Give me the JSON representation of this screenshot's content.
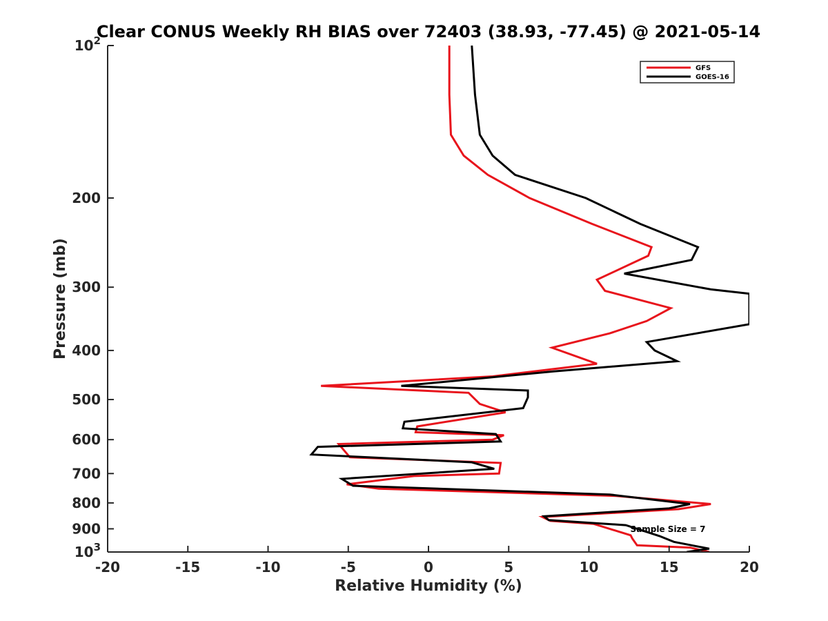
{
  "chart_data": {
    "type": "line",
    "title": "Clear CONUS Weekly RH BIAS over 72403 (38.93, -77.45) @ 2021-05-14",
    "xlabel": "Relative Humidity (%)",
    "ylabel": "Pressure (mb)",
    "xlim": [
      -20,
      20
    ],
    "ylim": [
      100,
      1000
    ],
    "y_scale": "log",
    "y_reversed": true,
    "grid": false,
    "legend_position": "top-right",
    "x_ticks": [
      "-20",
      "-15",
      "-10",
      "-5",
      "0",
      "5",
      "10",
      "15",
      "20"
    ],
    "y_ticks": [
      {
        "value": 100,
        "base": "10",
        "exp": "2"
      },
      {
        "value": 200,
        "base": "200",
        "exp": ""
      },
      {
        "value": 300,
        "base": "300",
        "exp": ""
      },
      {
        "value": 400,
        "base": "400",
        "exp": ""
      },
      {
        "value": 500,
        "base": "500",
        "exp": ""
      },
      {
        "value": 600,
        "base": "600",
        "exp": ""
      },
      {
        "value": 700,
        "base": "700",
        "exp": ""
      },
      {
        "value": 800,
        "base": "800",
        "exp": ""
      },
      {
        "value": 900,
        "base": "900",
        "exp": ""
      },
      {
        "value": 1000,
        "base": "10",
        "exp": "3"
      }
    ],
    "annotation": {
      "text": "Sample Size = 7",
      "x": 15.5,
      "y": 900
    },
    "series": [
      {
        "name": "GFS",
        "color": "#e8141c",
        "points": [
          [
            1.3,
            100
          ],
          [
            1.3,
            125
          ],
          [
            1.4,
            150
          ],
          [
            2.2,
            165
          ],
          [
            3.7,
            180
          ],
          [
            6.3,
            200
          ],
          [
            10.2,
            225
          ],
          [
            13.9,
            250
          ],
          [
            13.7,
            260
          ],
          [
            10.5,
            290
          ],
          [
            11.0,
            305
          ],
          [
            15.1,
            330
          ],
          [
            13.6,
            350
          ],
          [
            11.3,
            370
          ],
          [
            7.7,
            395
          ],
          [
            10.5,
            425
          ],
          [
            4.0,
            450
          ],
          [
            -6.7,
            470
          ],
          [
            2.5,
            485
          ],
          [
            3.2,
            510
          ],
          [
            4.8,
            530
          ],
          [
            -0.7,
            565
          ],
          [
            -0.8,
            580
          ],
          [
            4.7,
            588
          ],
          [
            4.0,
            600
          ],
          [
            -5.6,
            612
          ],
          [
            -4.9,
            650
          ],
          [
            4.5,
            667
          ],
          [
            4.4,
            700
          ],
          [
            -0.9,
            708
          ],
          [
            -5.1,
            735
          ],
          [
            -3.1,
            750
          ],
          [
            11.7,
            775
          ],
          [
            17.6,
            804
          ],
          [
            15.6,
            823
          ],
          [
            7.1,
            853
          ],
          [
            7.6,
            868
          ],
          [
            10.3,
            880
          ],
          [
            12.6,
            927
          ],
          [
            12.7,
            940
          ],
          [
            13.0,
            970
          ],
          [
            16.3,
            980
          ],
          [
            17.5,
            1000
          ]
        ]
      },
      {
        "name": "GOES-16",
        "color": "#000000",
        "points": [
          [
            2.7,
            100
          ],
          [
            2.9,
            125
          ],
          [
            3.2,
            150
          ],
          [
            4.0,
            165
          ],
          [
            5.4,
            180
          ],
          [
            9.8,
            200
          ],
          [
            13.2,
            225
          ],
          [
            16.8,
            250
          ],
          [
            16.4,
            265
          ],
          [
            12.2,
            282
          ],
          [
            17.6,
            303
          ],
          [
            20.0,
            309
          ],
          [
            20.0,
            355
          ],
          [
            13.6,
            385
          ],
          [
            14.1,
            400
          ],
          [
            15.5,
            420
          ],
          [
            7.8,
            440
          ],
          [
            -1.7,
            470
          ],
          [
            6.2,
            480
          ],
          [
            6.2,
            495
          ],
          [
            5.9,
            520
          ],
          [
            -1.5,
            553
          ],
          [
            -1.6,
            570
          ],
          [
            4.2,
            585
          ],
          [
            4.5,
            605
          ],
          [
            -6.9,
            620
          ],
          [
            -7.3,
            642
          ],
          [
            2.7,
            665
          ],
          [
            4.1,
            685
          ],
          [
            -5.4,
            717
          ],
          [
            -4.7,
            740
          ],
          [
            11.3,
            770
          ],
          [
            16.3,
            804
          ],
          [
            15.0,
            820
          ],
          [
            7.2,
            850
          ],
          [
            7.5,
            865
          ],
          [
            12.3,
            885
          ],
          [
            14.4,
            930
          ],
          [
            15.3,
            955
          ],
          [
            17.5,
            985
          ],
          [
            16.1,
            1000
          ]
        ]
      }
    ]
  }
}
